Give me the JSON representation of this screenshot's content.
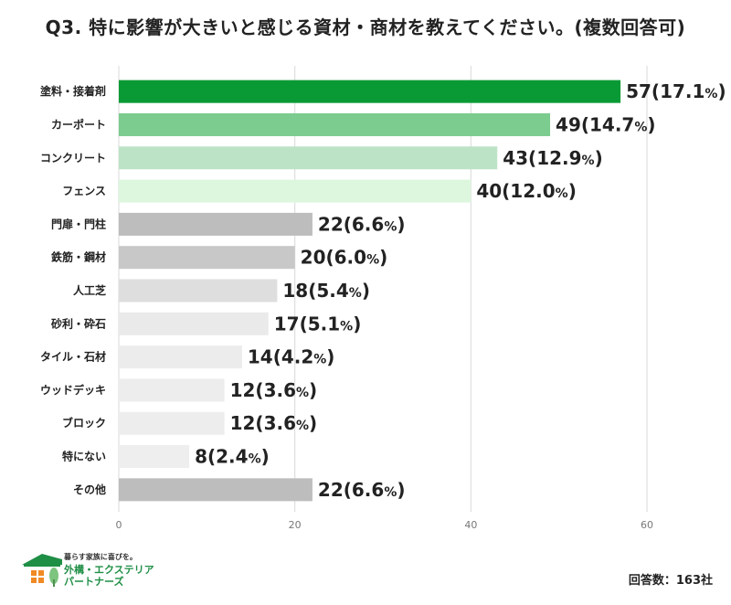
{
  "title": "Q3. 特に影響が大きいと感じる資材・商材を教えてください。(複数回答可)",
  "chart_data": {
    "type": "bar",
    "orientation": "horizontal",
    "categories": [
      "塗料・接着剤",
      "カーポート",
      "コンクリート",
      "フェンス",
      "門扉・門柱",
      "鉄筋・鋼材",
      "人工芝",
      "砂利・砕石",
      "タイル・石材",
      "ウッドデッキ",
      "ブロック",
      "特にない",
      "その他"
    ],
    "values": [
      57,
      49,
      43,
      40,
      22,
      20,
      18,
      17,
      14,
      12,
      12,
      8,
      22
    ],
    "percents": [
      "17.1",
      "14.7",
      "12.9",
      "12.0",
      "6.6",
      "6.0",
      "5.4",
      "5.1",
      "4.2",
      "3.6",
      "3.6",
      "2.4",
      "6.6"
    ],
    "colors": [
      "#0a9a35",
      "#7ccb8f",
      "#bde3c6",
      "#dcf7dd",
      "#bdbdbd",
      "#c8c8c8",
      "#dedede",
      "#eaeaea",
      "#ececec",
      "#ededed",
      "#ededed",
      "#eeeeee",
      "#bdbdbd"
    ],
    "xlim": [
      0,
      70
    ],
    "xticks": [
      0,
      20,
      40,
      60
    ],
    "grid": true,
    "percent_unit": "%"
  },
  "logo": {
    "tagline": "暮らす家族に喜びを。",
    "name_line1": "外構・エクステリア",
    "name_line2": "パートナーズ",
    "colors": {
      "roof": "#1f8f46",
      "windows": "#f08a24",
      "tree": "#7cc47f"
    }
  },
  "footer": {
    "respondents": "回答数：163社"
  }
}
